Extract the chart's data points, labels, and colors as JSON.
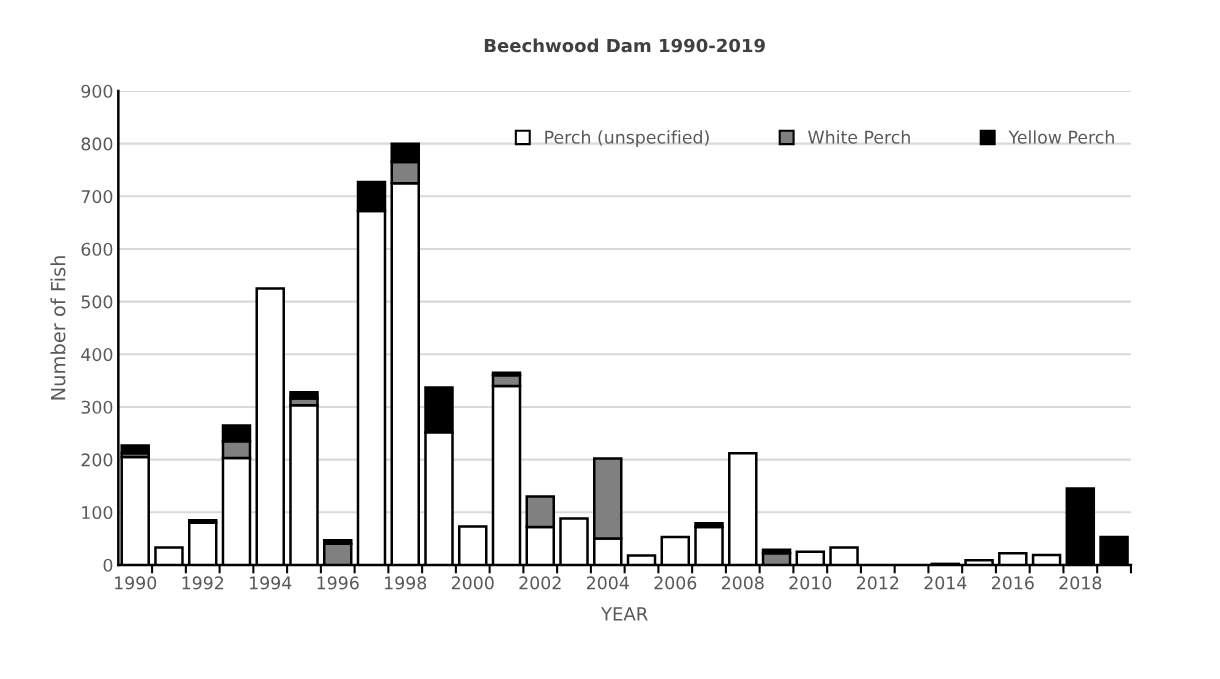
{
  "chart_data": {
    "type": "bar",
    "title": "Beechwood Dam 1990-2019",
    "xlabel": "YEAR",
    "ylabel": "Number of Fish",
    "categories": [
      "1990",
      null,
      "1992",
      null,
      "1994",
      null,
      "1996",
      null,
      "1998",
      null,
      "2000",
      null,
      "2002",
      null,
      "2004",
      null,
      "2006",
      null,
      "2008",
      null,
      "2010",
      null,
      "2012",
      null,
      "2014",
      null,
      "2016",
      null,
      "2018",
      null
    ],
    "stacked": true,
    "series": [
      {
        "name": "Perch (unspecified)",
        "color": "#ffffff",
        "values": [
          205,
          33,
          80,
          203,
          525,
          303,
          null,
          672,
          725,
          252,
          73,
          340,
          72,
          88,
          50,
          18,
          53,
          72,
          212,
          null,
          25,
          33,
          null,
          null,
          2,
          9,
          22,
          19,
          null,
          null
        ]
      },
      {
        "name": "White Perch",
        "color": "#808080",
        "values": [
          7,
          null,
          null,
          32,
          null,
          13,
          40,
          null,
          40,
          null,
          null,
          20,
          58,
          null,
          152,
          null,
          null,
          null,
          null,
          22,
          null,
          null,
          null,
          null,
          null,
          null,
          null,
          null,
          null,
          null
        ]
      },
      {
        "name": "Yellow Perch",
        "color": "#000000",
        "values": [
          15,
          null,
          5,
          30,
          null,
          12,
          7,
          55,
          35,
          85,
          null,
          5,
          null,
          null,
          null,
          null,
          null,
          7,
          null,
          7,
          null,
          null,
          null,
          null,
          null,
          null,
          null,
          null,
          145,
          53
        ]
      }
    ],
    "ylim": [
      0,
      900
    ],
    "yticks": [
      0,
      100,
      200,
      300,
      400,
      500,
      600,
      700,
      800,
      900
    ],
    "grid": "y",
    "legend": "top right"
  }
}
